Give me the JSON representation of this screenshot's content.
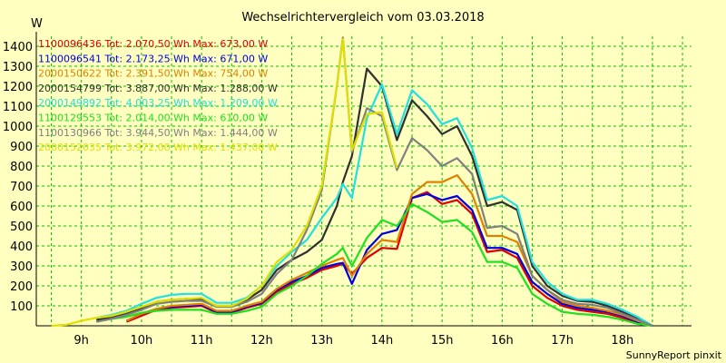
{
  "chart_data": {
    "type": "line",
    "title": "Wechselrichtervergleich vom 03.03.2018",
    "ylabel": "W",
    "xlabel": "",
    "credit": "SunnyReport pinxit",
    "ylim": [
      0,
      1450
    ],
    "xlim": [
      8.25,
      19.15
    ],
    "y_ticks": [
      100,
      200,
      300,
      400,
      500,
      600,
      700,
      800,
      900,
      1000,
      1100,
      1200,
      1300,
      1400
    ],
    "x_ticks": [
      {
        "value": 9,
        "label": "9h"
      },
      {
        "value": 10,
        "label": "10h"
      },
      {
        "value": 11,
        "label": "11h"
      },
      {
        "value": 12,
        "label": "12h"
      },
      {
        "value": 13,
        "label": "13h"
      },
      {
        "value": 14,
        "label": "14h"
      },
      {
        "value": 15,
        "label": "15h"
      },
      {
        "value": 16,
        "label": "16h"
      },
      {
        "value": 17,
        "label": "17h"
      },
      {
        "value": 18,
        "label": "18h"
      }
    ],
    "grid": true,
    "legend_position": "top-left",
    "x": [
      8.25,
      8.5,
      8.75,
      9.0,
      9.25,
      9.5,
      9.75,
      10.0,
      10.25,
      10.5,
      10.75,
      11.0,
      11.25,
      11.5,
      11.75,
      12.0,
      12.25,
      12.5,
      12.75,
      13.0,
      13.25,
      13.35,
      13.5,
      13.75,
      14.0,
      14.25,
      14.5,
      14.75,
      15.0,
      15.25,
      15.5,
      15.75,
      16.0,
      16.25,
      16.5,
      16.75,
      17.0,
      17.25,
      17.5,
      17.75,
      18.0,
      18.25,
      18.5,
      18.75,
      19.0
    ],
    "series": [
      {
        "name": "1100096436 Tot: 2.070,50 Wh Max: 673,00 W",
        "color": "#e00000",
        "values": [
          null,
          null,
          null,
          null,
          null,
          null,
          20,
          50,
          80,
          90,
          95,
          100,
          65,
          65,
          90,
          110,
          170,
          210,
          240,
          280,
          300,
          310,
          260,
          340,
          390,
          385,
          640,
          670,
          610,
          630,
          560,
          370,
          380,
          340,
          200,
          140,
          100,
          80,
          70,
          60,
          40,
          15,
          0,
          null,
          null
        ]
      },
      {
        "name": "1100096541 Tot: 2.173,25 Wh Max: 671,00 W",
        "color": "#0000e0",
        "values": [
          null,
          null,
          null,
          null,
          null,
          null,
          25,
          60,
          85,
          95,
          100,
          105,
          70,
          70,
          95,
          115,
          180,
          220,
          250,
          290,
          310,
          315,
          210,
          380,
          460,
          480,
          640,
          660,
          630,
          650,
          580,
          390,
          390,
          360,
          220,
          160,
          110,
          90,
          80,
          70,
          50,
          20,
          0,
          null,
          null
        ]
      },
      {
        "name": "2000150622 Tot: 2.391,50 Wh Max: 754,00 W",
        "color": "#e08000",
        "values": [
          null,
          null,
          null,
          null,
          null,
          null,
          25,
          60,
          85,
          100,
          105,
          110,
          75,
          75,
          100,
          120,
          185,
          230,
          265,
          300,
          330,
          340,
          250,
          360,
          430,
          420,
          660,
          720,
          720,
          754,
          660,
          450,
          450,
          420,
          250,
          180,
          120,
          100,
          90,
          75,
          55,
          25,
          0,
          null,
          null
        ]
      },
      {
        "name": "2000154799 Tot: 3.887,00 Wh Max: 1.288,00 W",
        "color": "#303030",
        "values": [
          null,
          null,
          null,
          null,
          30,
          40,
          60,
          90,
          120,
          130,
          135,
          135,
          100,
          100,
          130,
          180,
          280,
          330,
          370,
          430,
          600,
          720,
          850,
          1288,
          1200,
          930,
          1130,
          1050,
          960,
          1000,
          850,
          600,
          620,
          580,
          300,
          200,
          150,
          125,
          120,
          100,
          70,
          40,
          0,
          null,
          null
        ]
      },
      {
        "name": "2000149892 Tot: 4.003,25 Wh Max: 1.209,00 W",
        "color": "#20e0e0",
        "values": [
          null,
          null,
          null,
          null,
          40,
          55,
          75,
          110,
          140,
          155,
          160,
          160,
          115,
          115,
          140,
          200,
          300,
          370,
          430,
          540,
          640,
          710,
          640,
          1040,
          1209,
          960,
          1180,
          1110,
          1010,
          1040,
          890,
          630,
          650,
          600,
          320,
          220,
          160,
          130,
          130,
          110,
          80,
          45,
          0,
          null,
          null
        ]
      },
      {
        "name": "1100129553 Tot: 2.014,00 Wh Max: 610,00 W",
        "color": "#20e020",
        "values": [
          null,
          null,
          null,
          null,
          20,
          35,
          45,
          65,
          75,
          80,
          80,
          80,
          60,
          60,
          75,
          95,
          160,
          200,
          250,
          310,
          360,
          390,
          300,
          440,
          530,
          500,
          610,
          570,
          520,
          530,
          470,
          320,
          320,
          290,
          160,
          110,
          70,
          60,
          55,
          45,
          30,
          10,
          0,
          null,
          null
        ]
      },
      {
        "name": "1100130966 Tot: 3.944,50 Wh Max: 1.444,00 W",
        "color": "#808080",
        "values": [
          null,
          null,
          null,
          null,
          20,
          35,
          55,
          80,
          110,
          120,
          125,
          125,
          95,
          95,
          120,
          160,
          260,
          330,
          480,
          680,
          1200,
          1444,
          870,
          1090,
          1050,
          780,
          940,
          880,
          800,
          840,
          760,
          490,
          500,
          460,
          250,
          180,
          130,
          110,
          105,
          90,
          60,
          30,
          0,
          null,
          null
        ]
      },
      {
        "name": "2000152035 Tot: 3.972,00 Wh Max: 1.437,00 W",
        "color": "#e0e000",
        "values": [
          null,
          0,
          5,
          25,
          40,
          50,
          70,
          95,
          120,
          130,
          135,
          140,
          100,
          100,
          135,
          200,
          320,
          380,
          500,
          700,
          1200,
          1437,
          880,
          1060,
          1070,
          790,
          null,
          null,
          null,
          null,
          null,
          null,
          null,
          null,
          null,
          null,
          null,
          null,
          null,
          null,
          null,
          null,
          null,
          null,
          null
        ]
      }
    ]
  }
}
